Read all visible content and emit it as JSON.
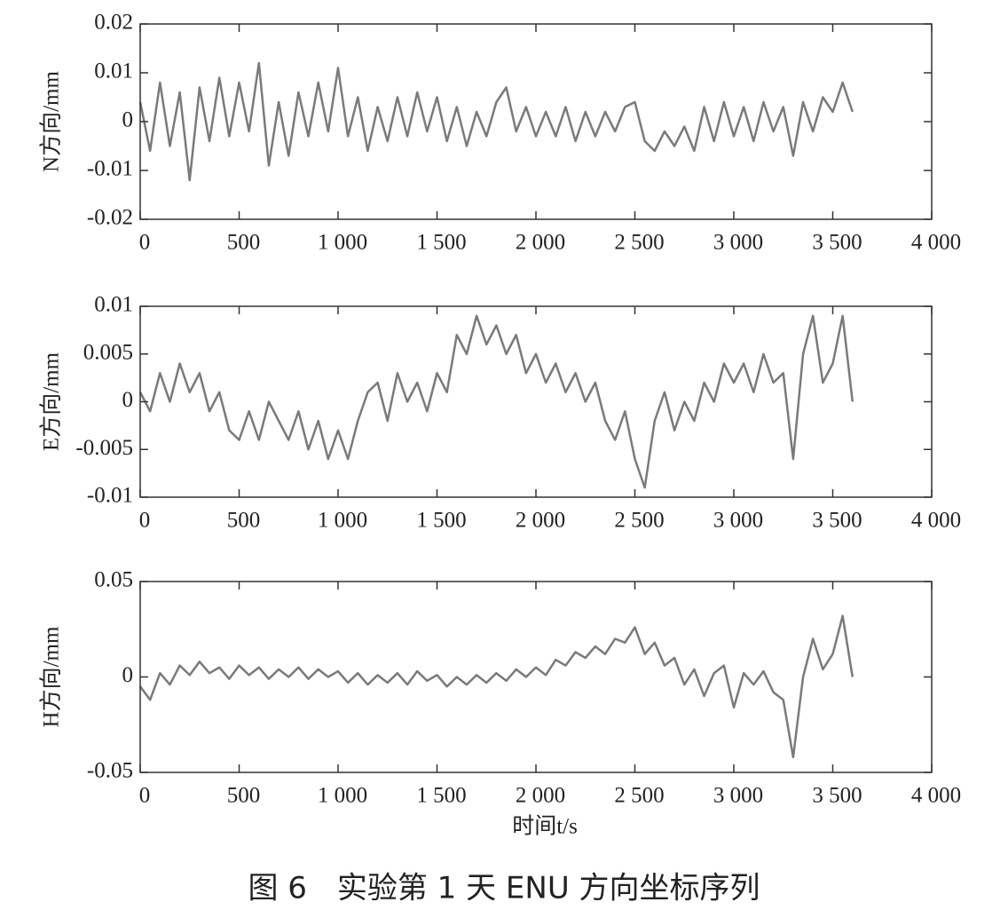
{
  "chart_data": [
    {
      "type": "line",
      "ylabel": "N方向/mm",
      "x": [
        0,
        50,
        100,
        150,
        200,
        250,
        300,
        350,
        400,
        450,
        500,
        550,
        600,
        650,
        700,
        750,
        800,
        850,
        900,
        950,
        1000,
        1050,
        1100,
        1150,
        1200,
        1250,
        1300,
        1350,
        1400,
        1450,
        1500,
        1550,
        1600,
        1650,
        1700,
        1750,
        1800,
        1850,
        1900,
        1950,
        2000,
        2050,
        2100,
        2150,
        2200,
        2250,
        2300,
        2350,
        2400,
        2450,
        2500,
        2550,
        2600,
        2650,
        2700,
        2750,
        2800,
        2850,
        2900,
        2950,
        3000,
        3050,
        3100,
        3150,
        3200,
        3250,
        3300,
        3350,
        3400,
        3450,
        3500,
        3550,
        3600
      ],
      "values": [
        0.004,
        -0.006,
        0.008,
        -0.005,
        0.006,
        -0.012,
        0.007,
        -0.004,
        0.009,
        -0.003,
        0.008,
        -0.002,
        0.012,
        -0.009,
        0.004,
        -0.007,
        0.006,
        -0.003,
        0.008,
        -0.002,
        0.011,
        -0.003,
        0.005,
        -0.006,
        0.003,
        -0.004,
        0.005,
        -0.003,
        0.006,
        -0.002,
        0.005,
        -0.004,
        0.003,
        -0.005,
        0.002,
        -0.003,
        0.004,
        0.007,
        -0.002,
        0.003,
        -0.003,
        0.002,
        -0.003,
        0.003,
        -0.004,
        0.002,
        -0.003,
        0.002,
        -0.002,
        0.003,
        0.004,
        -0.004,
        -0.006,
        -0.002,
        -0.005,
        -0.001,
        -0.006,
        0.003,
        -0.004,
        0.004,
        -0.003,
        0.003,
        -0.004,
        0.004,
        -0.002,
        0.003,
        -0.007,
        0.004,
        -0.002,
        0.005,
        0.002,
        0.008,
        0.002
      ],
      "color": "#7a7a7a",
      "xlim": [
        0,
        4000
      ],
      "xticks": [
        0,
        500,
        {
          "value": 1000,
          "label": "1 000"
        },
        {
          "value": 1500,
          "label": "1 500"
        },
        {
          "value": 2000,
          "label": "2 000"
        },
        {
          "value": 2500,
          "label": "2 500"
        },
        {
          "value": 3000,
          "label": "3 000"
        },
        {
          "value": 3500,
          "label": "3 500"
        },
        {
          "value": 4000,
          "label": "4 000"
        }
      ],
      "ylim": [
        -0.02,
        0.02
      ],
      "yticks": [
        -0.02,
        -0.01,
        0,
        0.01,
        0.02
      ]
    },
    {
      "type": "line",
      "ylabel": "E方向/mm",
      "x": [
        0,
        50,
        100,
        150,
        200,
        250,
        300,
        350,
        400,
        450,
        500,
        550,
        600,
        650,
        700,
        750,
        800,
        850,
        900,
        950,
        1000,
        1050,
        1100,
        1150,
        1200,
        1250,
        1300,
        1350,
        1400,
        1450,
        1500,
        1550,
        1600,
        1650,
        1700,
        1750,
        1800,
        1850,
        1900,
        1950,
        2000,
        2050,
        2100,
        2150,
        2200,
        2250,
        2300,
        2350,
        2400,
        2450,
        2500,
        2550,
        2600,
        2650,
        2700,
        2750,
        2800,
        2850,
        2900,
        2950,
        3000,
        3050,
        3100,
        3150,
        3200,
        3250,
        3300,
        3350,
        3400,
        3450,
        3500,
        3550,
        3600
      ],
      "values": [
        0.001,
        -0.001,
        0.003,
        0,
        0.004,
        0.001,
        0.003,
        -0.001,
        0.001,
        -0.003,
        -0.004,
        -0.001,
        -0.004,
        0,
        -0.002,
        -0.004,
        -0.001,
        -0.005,
        -0.002,
        -0.006,
        -0.003,
        -0.006,
        -0.002,
        0.001,
        0.002,
        -0.002,
        0.003,
        0,
        0.002,
        -0.001,
        0.003,
        0.001,
        0.007,
        0.005,
        0.009,
        0.006,
        0.008,
        0.005,
        0.007,
        0.003,
        0.005,
        0.002,
        0.004,
        0.001,
        0.003,
        0,
        0.002,
        -0.002,
        -0.004,
        -0.001,
        -0.006,
        -0.009,
        -0.002,
        0.001,
        -0.003,
        0,
        -0.002,
        0.002,
        0,
        0.004,
        0.002,
        0.004,
        0.001,
        0.005,
        0.002,
        0.003,
        -0.006,
        0.005,
        0.009,
        0.002,
        0.004,
        0.009,
        0
      ],
      "color": "#7a7a7a",
      "xlim": [
        0,
        4000
      ],
      "xticks": [
        0,
        500,
        {
          "value": 1000,
          "label": "1 000"
        },
        {
          "value": 1500,
          "label": "1 500"
        },
        {
          "value": 2000,
          "label": "2 000"
        },
        {
          "value": 2500,
          "label": "2 500"
        },
        {
          "value": 3000,
          "label": "3 000"
        },
        {
          "value": 3500,
          "label": "3 500"
        },
        {
          "value": 4000,
          "label": "4 000"
        }
      ],
      "ylim": [
        -0.01,
        0.01
      ],
      "yticks": [
        -0.01,
        -0.005,
        0,
        0.005,
        0.01
      ]
    },
    {
      "type": "line",
      "ylabel": "H方向/mm",
      "xlabel": "时间t/s",
      "x": [
        0,
        50,
        100,
        150,
        200,
        250,
        300,
        350,
        400,
        450,
        500,
        550,
        600,
        650,
        700,
        750,
        800,
        850,
        900,
        950,
        1000,
        1050,
        1100,
        1150,
        1200,
        1250,
        1300,
        1350,
        1400,
        1450,
        1500,
        1550,
        1600,
        1650,
        1700,
        1750,
        1800,
        1850,
        1900,
        1950,
        2000,
        2050,
        2100,
        2150,
        2200,
        2250,
        2300,
        2350,
        2400,
        2450,
        2500,
        2550,
        2600,
        2650,
        2700,
        2750,
        2800,
        2850,
        2900,
        2950,
        3000,
        3050,
        3100,
        3150,
        3200,
        3250,
        3300,
        3350,
        3400,
        3450,
        3500,
        3550,
        3600
      ],
      "values": [
        -0.005,
        -0.012,
        0.002,
        -0.004,
        0.006,
        0.001,
        0.008,
        0.002,
        0.005,
        -0.001,
        0.006,
        0.001,
        0.005,
        -0.001,
        0.004,
        0,
        0.005,
        -0.001,
        0.004,
        0,
        0.003,
        -0.003,
        0.002,
        -0.004,
        0.001,
        -0.003,
        0.002,
        -0.004,
        0.003,
        -0.002,
        0.001,
        -0.005,
        0,
        -0.004,
        0.001,
        -0.003,
        0.002,
        -0.002,
        0.004,
        0,
        0.005,
        0.001,
        0.009,
        0.006,
        0.013,
        0.01,
        0.016,
        0.012,
        0.02,
        0.018,
        0.026,
        0.012,
        0.018,
        0.006,
        0.01,
        -0.004,
        0.004,
        -0.01,
        0.002,
        0.006,
        -0.016,
        0.002,
        -0.004,
        0.003,
        -0.008,
        -0.012,
        -0.042,
        0,
        0.02,
        0.004,
        0.012,
        0.032,
        0
      ],
      "color": "#7a7a7a",
      "xlim": [
        0,
        4000
      ],
      "xticks": [
        0,
        500,
        {
          "value": 1000,
          "label": "1 000"
        },
        {
          "value": 1500,
          "label": "1 500"
        },
        {
          "value": 2000,
          "label": "2 000"
        },
        {
          "value": 2500,
          "label": "2 500"
        },
        {
          "value": 3000,
          "label": "3 000"
        },
        {
          "value": 3500,
          "label": "3 500"
        },
        {
          "value": 4000,
          "label": "4 000"
        }
      ],
      "ylim": [
        -0.05,
        0.05
      ],
      "yticks": [
        -0.05,
        0,
        0.05
      ]
    }
  ],
  "caption": "图 6　实验第 1 天 ENU 方向坐标序列"
}
